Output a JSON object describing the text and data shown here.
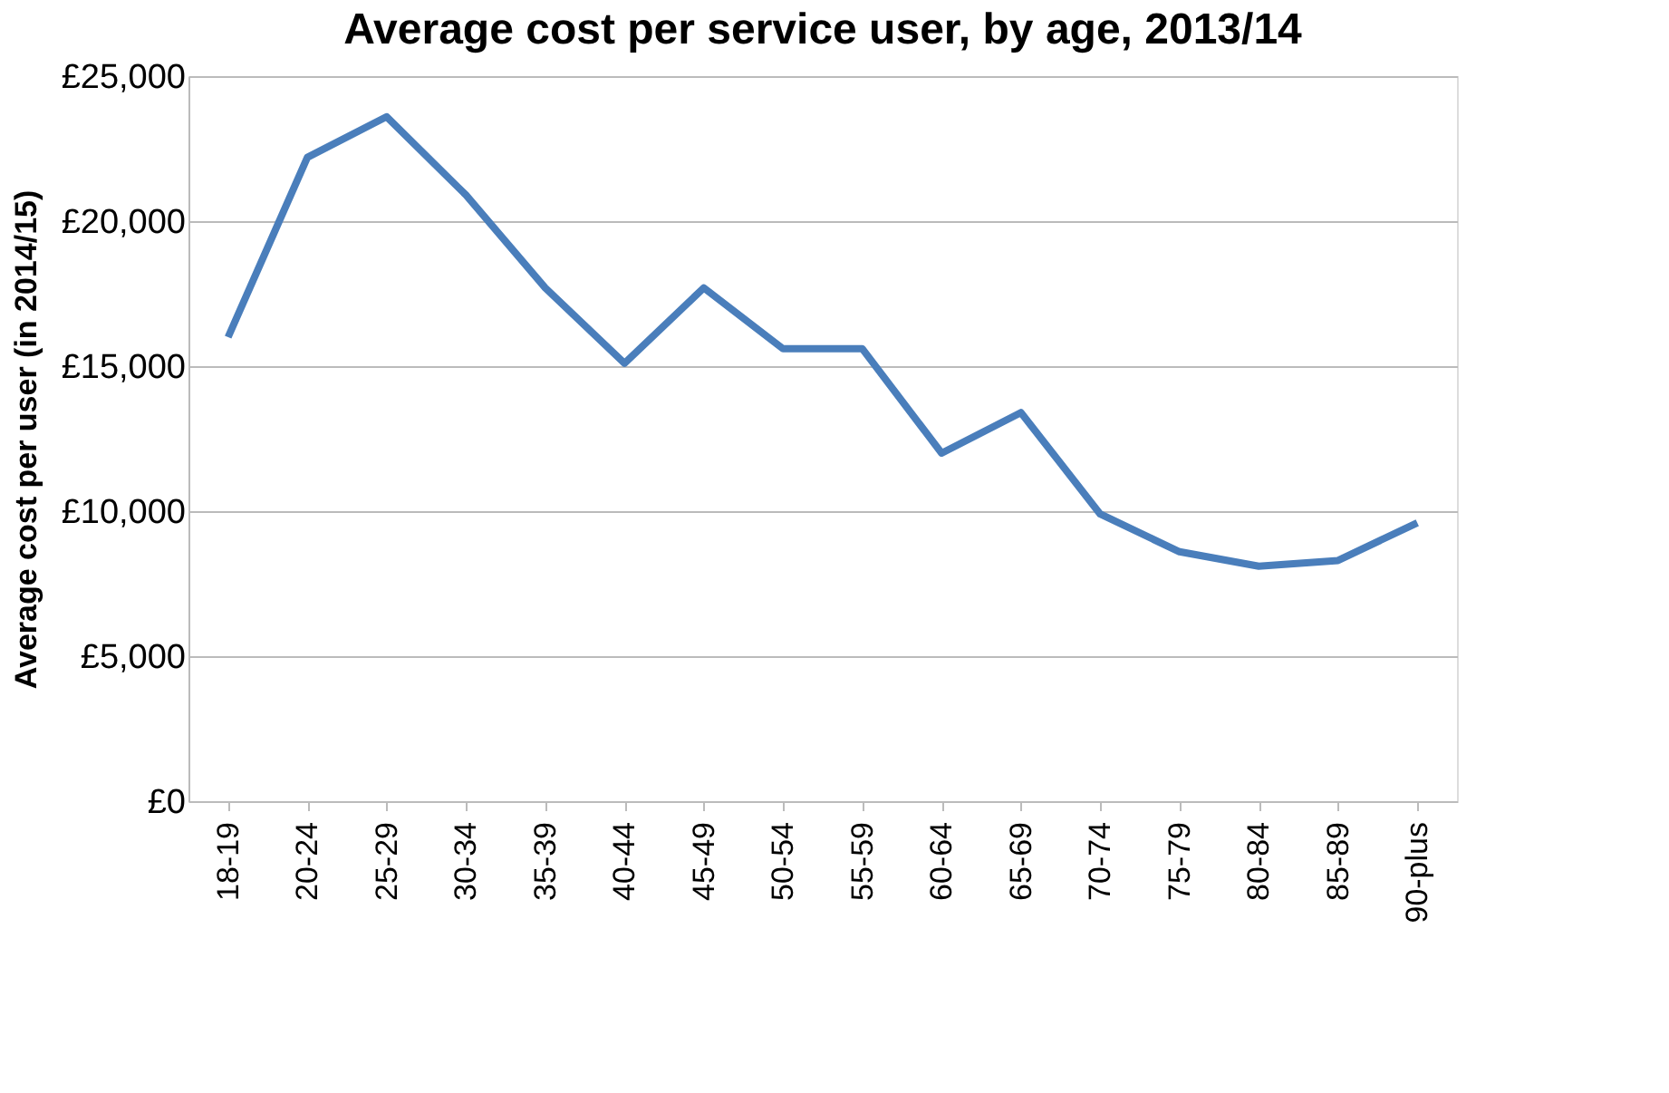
{
  "chart_data": {
    "type": "line",
    "title": "Average cost per service user, by age, 2013/14",
    "ylabel": "Average cost per user (in 2014/15)",
    "categories": [
      "18-19",
      "20-24",
      "25-29",
      "30-34",
      "35-39",
      "40-44",
      "45-49",
      "50-54",
      "55-59",
      "60-64",
      "65-69",
      "70-74",
      "75-79",
      "80-84",
      "85-89",
      "90-plus"
    ],
    "series": [
      {
        "color": "#4a7ebb",
        "values": [
          16000,
          22200,
          23600,
          20900,
          17700,
          15100,
          17700,
          15600,
          15600,
          12000,
          13400,
          9900,
          8600,
          8100,
          8300,
          9600
        ]
      }
    ],
    "ylim": [
      0,
      25000
    ],
    "yticks": [
      {
        "value": 0,
        "label": "£0"
      },
      {
        "value": 5000,
        "label": "£5,000"
      },
      {
        "value": 10000,
        "label": "£10,000"
      },
      {
        "value": 15000,
        "label": "£15,000"
      },
      {
        "value": 20000,
        "label": "£20,000"
      },
      {
        "value": 25000,
        "label": "£25,000"
      }
    ],
    "grid": "y",
    "legend": false,
    "marker": "none",
    "line_style": "solid"
  }
}
